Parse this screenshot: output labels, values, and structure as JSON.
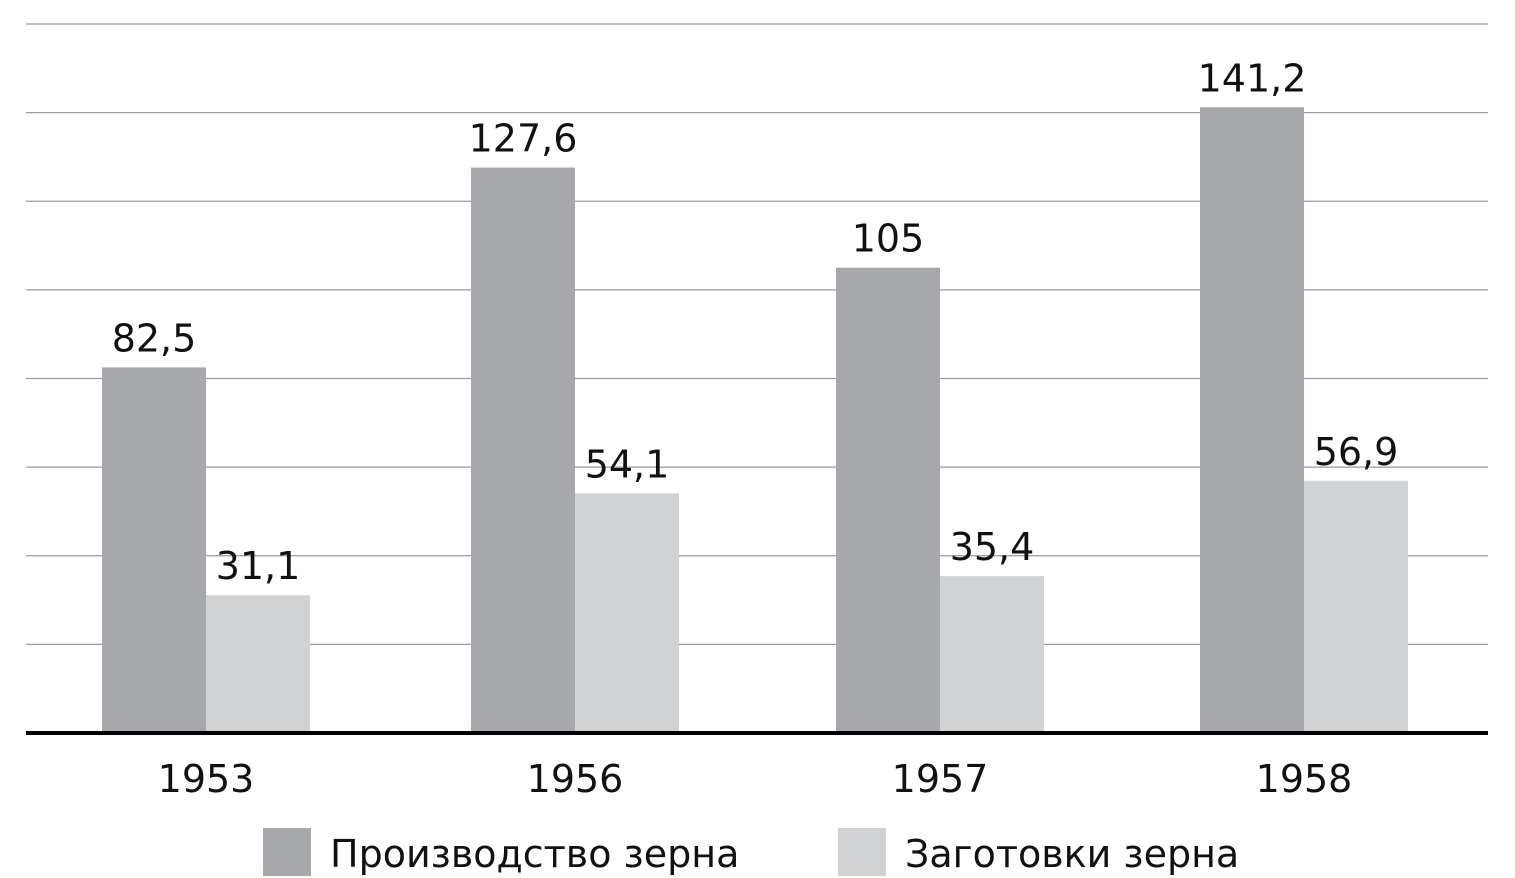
{
  "chart_data": {
    "type": "bar",
    "categories": [
      "1953",
      "1956",
      "1957",
      "1958"
    ],
    "series": [
      {
        "name": "Производство зерна",
        "values": [
          82.5,
          127.6,
          105,
          141.2
        ],
        "labels": [
          "82,5",
          "127,6",
          "105",
          "141,2"
        ],
        "color": "#a7a8ab"
      },
      {
        "name": "Заготовки зерна",
        "values": [
          31.1,
          54.1,
          35.4,
          56.9
        ],
        "labels": [
          "31,1",
          "54,1",
          "35,4",
          "56,9"
        ],
        "color": "#d1d2d4"
      }
    ],
    "ylim": [
      0,
      160
    ],
    "grid": true,
    "grid_step": 20,
    "legend_position": "bottom"
  }
}
